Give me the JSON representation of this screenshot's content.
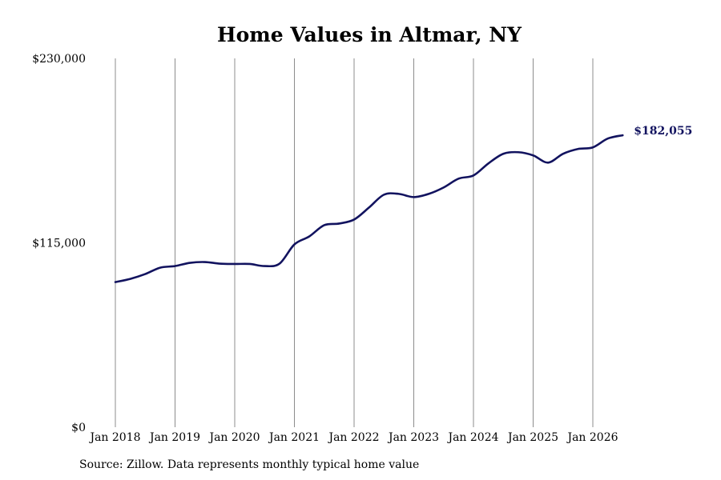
{
  "chart_data": {
    "type": "line",
    "title": "Home Values in Altmar, NY",
    "xlabel": "",
    "ylabel": "",
    "ylim": [
      0,
      230000
    ],
    "y_ticks": [
      0,
      115000,
      230000
    ],
    "y_tick_labels": [
      "$0",
      "$115,000",
      "$230,000"
    ],
    "x_tick_labels": [
      "Jan 2018",
      "Jan 2019",
      "Jan 2020",
      "Jan 2021",
      "Jan 2022",
      "Jan 2023",
      "Jan 2024",
      "Jan 2025",
      "Jan 2026"
    ],
    "x_range": [
      "2018-01",
      "2026-09"
    ],
    "grid": "vertical gridlines at each January",
    "legend": "none",
    "line_color": "#12135f",
    "end_label": "$182,055",
    "series": [
      {
        "values": [
          {
            "x": "2018-01",
            "y": 90500
          },
          {
            "x": "2018-04",
            "y": 92500
          },
          {
            "x": "2018-07",
            "y": 95500
          },
          {
            "x": "2018-10",
            "y": 99500
          },
          {
            "x": "2019-01",
            "y": 100500
          },
          {
            "x": "2019-04",
            "y": 102500
          },
          {
            "x": "2019-07",
            "y": 103000
          },
          {
            "x": "2019-10",
            "y": 102000
          },
          {
            "x": "2020-01",
            "y": 101800
          },
          {
            "x": "2020-04",
            "y": 101800
          },
          {
            "x": "2020-07",
            "y": 100500
          },
          {
            "x": "2020-10",
            "y": 102000
          },
          {
            "x": "2021-01",
            "y": 114000
          },
          {
            "x": "2021-04",
            "y": 119000
          },
          {
            "x": "2021-07",
            "y": 126000
          },
          {
            "x": "2021-10",
            "y": 127000
          },
          {
            "x": "2022-01",
            "y": 129500
          },
          {
            "x": "2022-04",
            "y": 137000
          },
          {
            "x": "2022-07",
            "y": 145000
          },
          {
            "x": "2022-10",
            "y": 145500
          },
          {
            "x": "2023-01",
            "y": 143500
          },
          {
            "x": "2023-04",
            "y": 145500
          },
          {
            "x": "2023-07",
            "y": 149500
          },
          {
            "x": "2023-10",
            "y": 155000
          },
          {
            "x": "2024-01",
            "y": 157000
          },
          {
            "x": "2024-04",
            "y": 164500
          },
          {
            "x": "2024-07",
            "y": 170500
          },
          {
            "x": "2024-10",
            "y": 171500
          },
          {
            "x": "2025-01",
            "y": 169500
          },
          {
            "x": "2025-04",
            "y": 165000
          },
          {
            "x": "2025-07",
            "y": 170500
          },
          {
            "x": "2025-10",
            "y": 173500
          },
          {
            "x": "2026-01",
            "y": 174500
          },
          {
            "x": "2026-04",
            "y": 180000
          },
          {
            "x": "2026-07",
            "y": 182055
          }
        ]
      }
    ]
  },
  "source_note": "Source: Zillow. Data represents monthly typical home value"
}
